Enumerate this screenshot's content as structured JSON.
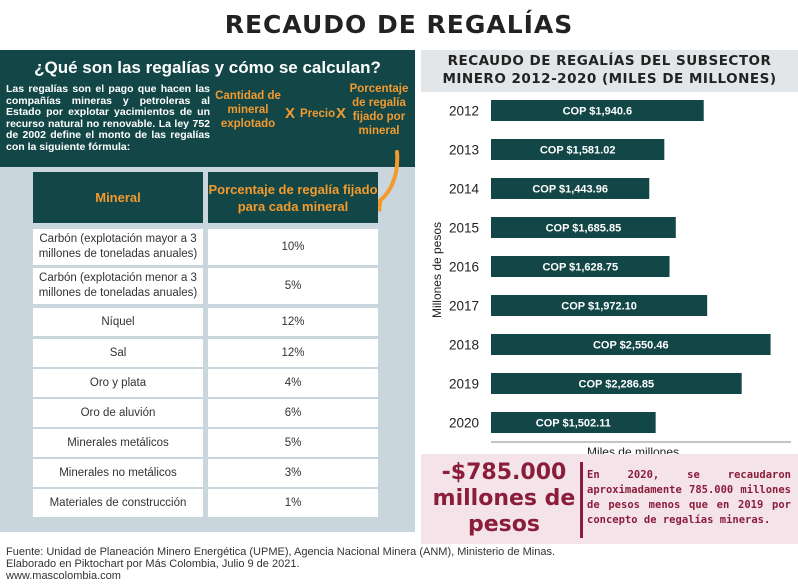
{
  "title": "RECAUDO DE REGALÍAS",
  "left": {
    "heading": "¿Qué son las regalías y cómo se calculan?",
    "explanation": "Las regalías son el pago que hacen las compañías mineras y petroleras al Estado por explotar yacimientos de un recurso natural no renovable. La ley 752 de 2002 define el monto de las regalías con la siguiente fórmula:",
    "formula": {
      "term1": "Cantidad de mineral explotado",
      "x1": "X",
      "term2": "Precio",
      "x2": "X",
      "term3": "Porcentaje de regalía fijado por mineral"
    },
    "table": {
      "headers": [
        "Mineral",
        "Porcentaje de regalía fijado para cada mineral"
      ],
      "rows": [
        [
          "Carbón (explotación mayor a 3 millones de toneladas anuales)",
          "10%"
        ],
        [
          "Carbón (explotación menor a 3 millones de toneladas anuales)",
          "5%"
        ],
        [
          "Níquel",
          "12%"
        ],
        [
          "Sal",
          "12%"
        ],
        [
          "Oro y plata",
          "4%"
        ],
        [
          "Oro de aluvión",
          "6%"
        ],
        [
          "Minerales metálicos",
          "5%"
        ],
        [
          "Minerales no metálicos",
          "3%"
        ],
        [
          "Materiales de construcción",
          "1%"
        ]
      ]
    }
  },
  "chart_data": {
    "type": "bar",
    "orientation": "horizontal",
    "title": "RECAUDO DE REGALÍAS DEL SUBSECTOR MINERO 2012-2020 (MILES DE MILLONES)",
    "xlabel": "Miles de millones",
    "ylabel": "Millones de pesos",
    "categories": [
      "2012",
      "2013",
      "2014",
      "2015",
      "2016",
      "2017",
      "2018",
      "2019",
      "2020"
    ],
    "values": [
      1940.6,
      1581.02,
      1443.96,
      1685.85,
      1628.75,
      1972.1,
      2550.46,
      2286.85,
      1502.11
    ],
    "data_labels": [
      "COP $1,940.6",
      "COP $1,581.02",
      "COP $1,443.96",
      "COP $1,685.85",
      "COP $1,628.75",
      "COP $1,972.10",
      "COP $2,550.46",
      "COP $2,286.85",
      "COP $1,502.11"
    ],
    "xlim": [
      0,
      2600
    ],
    "bar_color": "#134747",
    "grid": false
  },
  "callout": {
    "big_number": "-$785.000 millones de pesos",
    "text": "En 2020, se recaudaron aproximadamente 785.000 millones de pesos menos que en 2019 por concepto de regalías mineras."
  },
  "footer": {
    "line1": "Fuente: Unidad de Planeación Minero Energética (UPME), Agencia Nacional Minera (ANM), Ministerio de Minas.",
    "line2": "Elaborado en Piktochart por Más Colombia, Julio 9 de 2021.",
    "line3": "www.mascolombia.com"
  },
  "colors": {
    "dark_teal": "#134747",
    "orange": "#f29a2e",
    "panel_gray": "#cad6de",
    "maroon": "#8b1d3c",
    "pink": "#f4e4ea"
  }
}
